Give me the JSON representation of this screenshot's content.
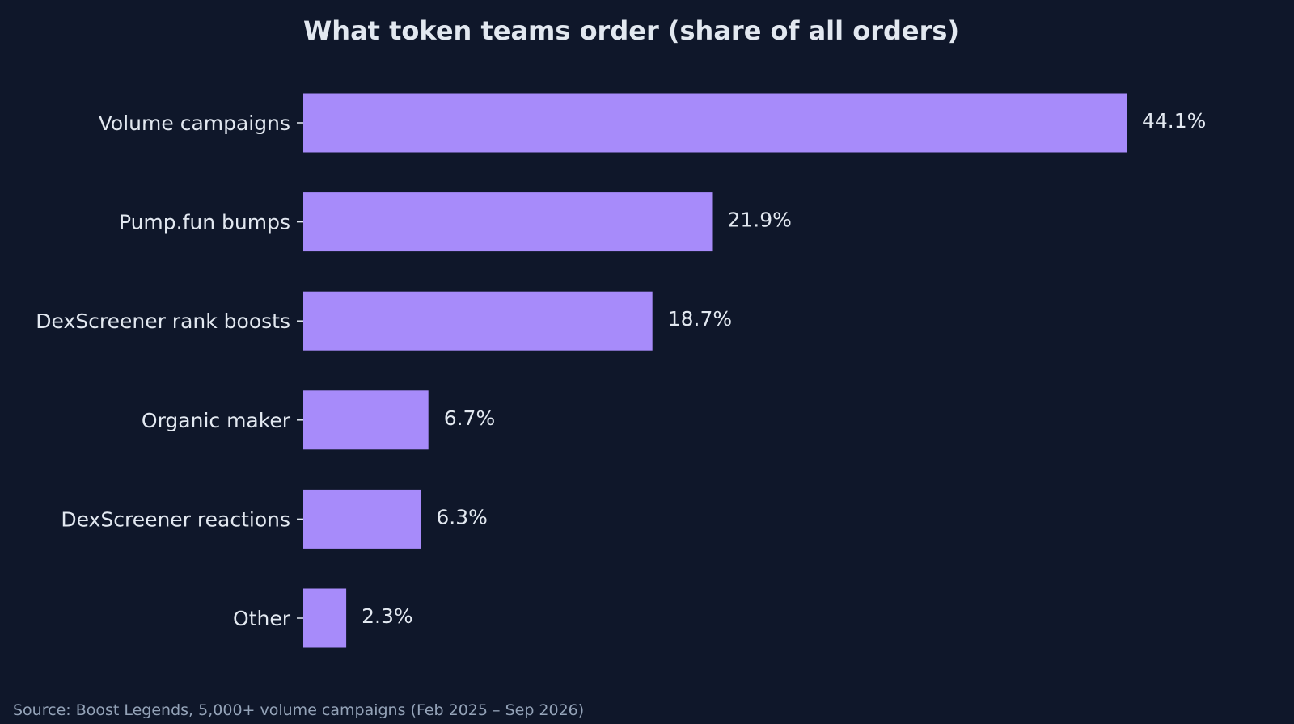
{
  "chart_data": {
    "type": "bar",
    "orientation": "horizontal",
    "title": "What token teams order (share of all orders)",
    "xlabel": "",
    "ylabel": "",
    "categories": [
      "Volume campaigns",
      "Pump.fun bumps",
      "DexScreener rank boosts",
      "Organic maker",
      "DexScreener reactions",
      "Other"
    ],
    "values": [
      44.1,
      21.9,
      18.7,
      6.7,
      6.3,
      2.3
    ],
    "value_labels": [
      "44.1%",
      "21.9%",
      "18.7%",
      "6.7%",
      "6.3%",
      "2.3%"
    ],
    "xlim": [
      0,
      44.1
    ],
    "grid": false,
    "bar_color": "#a78bfa",
    "background_color": "#0f172a",
    "text_color": "#e2e8f0",
    "source_note": "Source: Boost Legends, 5,000+ volume campaigns (Feb 2025 – Sep 2026)"
  }
}
